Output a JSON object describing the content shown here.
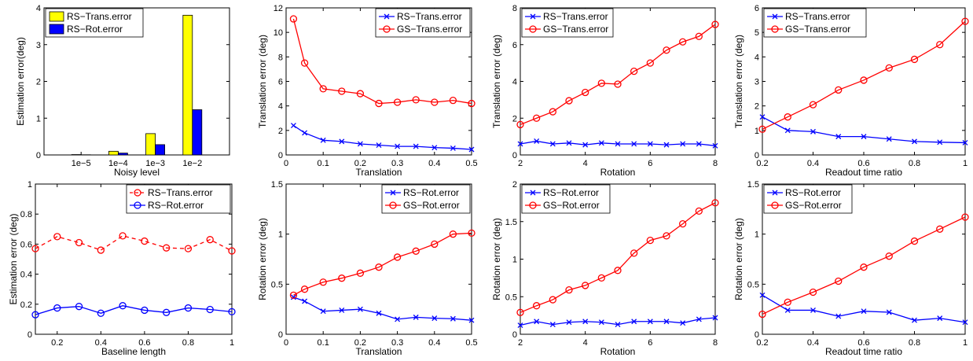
{
  "chart_data": [
    {
      "type": "bar",
      "xlabel": "Noisy level",
      "ylabel": "Estimation error(deg)",
      "categories": [
        "1e−5",
        "1e−4",
        "1e−3",
        "1e−2"
      ],
      "ylim": [
        0,
        4
      ],
      "yticks": [
        "0",
        "1",
        "2",
        "3",
        "4"
      ],
      "legend": "top-left",
      "series": [
        {
          "name": "RS−Trans.error",
          "color": "#ffff00",
          "values": [
            0.01,
            0.1,
            0.58,
            3.8
          ]
        },
        {
          "name": "RS−Rot.error",
          "color": "#0000ff",
          "values": [
            0.005,
            0.05,
            0.28,
            1.23
          ]
        }
      ]
    },
    {
      "type": "line",
      "xlabel": "Translation",
      "ylabel": "Translation error (deg)",
      "xlim": [
        0,
        0.5
      ],
      "ylim": [
        0,
        12
      ],
      "xticks": [
        "0",
        "0.1",
        "0.2",
        "0.3",
        "0.4",
        "0.5"
      ],
      "yticks": [
        "0",
        "2",
        "4",
        "6",
        "8",
        "10",
        "12"
      ],
      "legend": "top-right",
      "x": [
        0.02,
        0.05,
        0.1,
        0.15,
        0.2,
        0.25,
        0.3,
        0.35,
        0.4,
        0.45,
        0.5
      ],
      "series": [
        {
          "name": "RS−Trans.error",
          "color": "#0000ff",
          "marker": "x",
          "dashed": false,
          "values": [
            2.4,
            1.8,
            1.2,
            1.1,
            0.9,
            0.8,
            0.7,
            0.7,
            0.6,
            0.55,
            0.45
          ]
        },
        {
          "name": "GS−Trans.error",
          "color": "#ff0000",
          "marker": "o",
          "dashed": false,
          "values": [
            11.1,
            7.5,
            5.4,
            5.2,
            5.0,
            4.2,
            4.3,
            4.5,
            4.3,
            4.45,
            4.2
          ]
        }
      ]
    },
    {
      "type": "line",
      "xlabel": "Rotation",
      "ylabel": "Translation error (deg)",
      "xlim": [
        2,
        8
      ],
      "ylim": [
        0,
        8
      ],
      "xticks": [
        "2",
        "4",
        "6",
        "8"
      ],
      "yticks": [
        "0",
        "2",
        "4",
        "6",
        "8"
      ],
      "legend": "top-left",
      "x": [
        2,
        2.5,
        3,
        3.5,
        4,
        4.5,
        5,
        5.5,
        6,
        6.5,
        7,
        7.5,
        8
      ],
      "series": [
        {
          "name": "RS−Trans.error",
          "color": "#0000ff",
          "marker": "x",
          "dashed": false,
          "values": [
            0.6,
            0.75,
            0.6,
            0.65,
            0.55,
            0.65,
            0.6,
            0.6,
            0.6,
            0.55,
            0.6,
            0.6,
            0.5
          ]
        },
        {
          "name": "GS−Trans.error",
          "color": "#ff0000",
          "marker": "o",
          "dashed": false,
          "values": [
            1.65,
            2.0,
            2.35,
            2.95,
            3.4,
            3.9,
            3.85,
            4.55,
            5.0,
            5.7,
            6.15,
            6.45,
            7.1
          ]
        }
      ]
    },
    {
      "type": "line",
      "xlabel": "Readout time ratio",
      "ylabel": "Translation error (deg)",
      "xlim": [
        0.2,
        1
      ],
      "ylim": [
        0,
        6
      ],
      "xticks": [
        "0.2",
        "0.4",
        "0.6",
        "0.8",
        "1"
      ],
      "yticks": [
        "0",
        "1",
        "2",
        "3",
        "4",
        "5",
        "6"
      ],
      "legend": "top-left",
      "x": [
        0.2,
        0.3,
        0.4,
        0.5,
        0.6,
        0.7,
        0.8,
        0.9,
        1.0
      ],
      "series": [
        {
          "name": "RS−Trans.error",
          "color": "#0000ff",
          "marker": "x",
          "dashed": false,
          "values": [
            1.55,
            1.0,
            0.95,
            0.75,
            0.75,
            0.65,
            0.55,
            0.52,
            0.5
          ]
        },
        {
          "name": "GS−Trans.error",
          "color": "#ff0000",
          "marker": "o",
          "dashed": false,
          "values": [
            1.05,
            1.55,
            2.05,
            2.65,
            3.05,
            3.55,
            3.9,
            4.5,
            5.45
          ]
        }
      ]
    },
    {
      "type": "line",
      "xlabel": "Baseline length",
      "ylabel": "Estimation error (deg)",
      "xlim": [
        0.1,
        1
      ],
      "ylim": [
        0,
        1
      ],
      "xticks": [
        "0.2",
        "0.4",
        "0.6",
        "0.8",
        "1"
      ],
      "yticks": [
        "0",
        "0.2",
        "0.4",
        "0.6",
        "0.8",
        "1"
      ],
      "legend": "top-right",
      "x": [
        0.1,
        0.2,
        0.3,
        0.4,
        0.5,
        0.6,
        0.7,
        0.8,
        0.9,
        1.0
      ],
      "series": [
        {
          "name": "RS−Trans.error",
          "color": "#ff0000",
          "marker": "o",
          "dashed": true,
          "values": [
            0.57,
            0.65,
            0.61,
            0.56,
            0.655,
            0.62,
            0.575,
            0.57,
            0.63,
            0.555
          ]
        },
        {
          "name": "RS−Rot.error",
          "color": "#0000ff",
          "marker": "o",
          "dashed": false,
          "values": [
            0.13,
            0.175,
            0.185,
            0.14,
            0.19,
            0.16,
            0.145,
            0.175,
            0.165,
            0.15
          ]
        }
      ]
    },
    {
      "type": "line",
      "xlabel": "Translation",
      "ylabel": "Rotation error (deg)",
      "xlim": [
        0,
        0.5
      ],
      "ylim": [
        0,
        1.5
      ],
      "xticks": [
        "0",
        "0.1",
        "0.2",
        "0.3",
        "0.4",
        "0.5"
      ],
      "yticks": [
        "0",
        "0.5",
        "1",
        "1.5"
      ],
      "legend": "top-right",
      "x": [
        0.02,
        0.05,
        0.1,
        0.15,
        0.2,
        0.25,
        0.3,
        0.35,
        0.4,
        0.45,
        0.5
      ],
      "series": [
        {
          "name": "RS−Rot.error",
          "color": "#0000ff",
          "marker": "x",
          "dashed": false,
          "values": [
            0.37,
            0.33,
            0.23,
            0.24,
            0.25,
            0.21,
            0.15,
            0.17,
            0.16,
            0.155,
            0.14
          ]
        },
        {
          "name": "GS−Rot.error",
          "color": "#ff0000",
          "marker": "o",
          "dashed": false,
          "values": [
            0.39,
            0.45,
            0.52,
            0.56,
            0.61,
            0.67,
            0.77,
            0.83,
            0.9,
            1.0,
            1.01
          ]
        }
      ]
    },
    {
      "type": "line",
      "xlabel": "Rotation",
      "ylabel": "Rotation error (deg)",
      "xlim": [
        2,
        8
      ],
      "ylim": [
        0,
        2
      ],
      "xticks": [
        "2",
        "4",
        "6",
        "8"
      ],
      "yticks": [
        "0",
        "0.5",
        "1",
        "1.5",
        "2"
      ],
      "legend": "top-left",
      "x": [
        2,
        2.5,
        3,
        3.5,
        4,
        4.5,
        5,
        5.5,
        6,
        6.5,
        7,
        7.5,
        8
      ],
      "series": [
        {
          "name": "RS−Rot.error",
          "color": "#0000ff",
          "marker": "x",
          "dashed": false,
          "values": [
            0.12,
            0.17,
            0.13,
            0.16,
            0.17,
            0.16,
            0.13,
            0.17,
            0.17,
            0.17,
            0.15,
            0.2,
            0.22
          ]
        },
        {
          "name": "GS−Rot.error",
          "color": "#ff0000",
          "marker": "o",
          "dashed": false,
          "values": [
            0.29,
            0.38,
            0.46,
            0.59,
            0.65,
            0.75,
            0.85,
            1.08,
            1.25,
            1.31,
            1.47,
            1.64,
            1.75
          ]
        }
      ]
    },
    {
      "type": "line",
      "xlabel": "Readout time ratio",
      "ylabel": "Rotation error (deg)",
      "xlim": [
        0.2,
        1
      ],
      "ylim": [
        0,
        1.5
      ],
      "xticks": [
        "0.2",
        "0.4",
        "0.6",
        "0.8",
        "1"
      ],
      "yticks": [
        "0",
        "0.5",
        "1",
        "1.5"
      ],
      "legend": "top-left",
      "x": [
        0.2,
        0.3,
        0.4,
        0.5,
        0.6,
        0.7,
        0.8,
        0.9,
        1.0
      ],
      "series": [
        {
          "name": "RS−Rot.error",
          "color": "#0000ff",
          "marker": "x",
          "dashed": false,
          "values": [
            0.39,
            0.24,
            0.24,
            0.18,
            0.23,
            0.22,
            0.14,
            0.16,
            0.12
          ]
        },
        {
          "name": "GS−Rot.error",
          "color": "#ff0000",
          "marker": "o",
          "dashed": false,
          "values": [
            0.2,
            0.32,
            0.42,
            0.53,
            0.67,
            0.78,
            0.93,
            1.05,
            1.17
          ]
        }
      ]
    }
  ]
}
